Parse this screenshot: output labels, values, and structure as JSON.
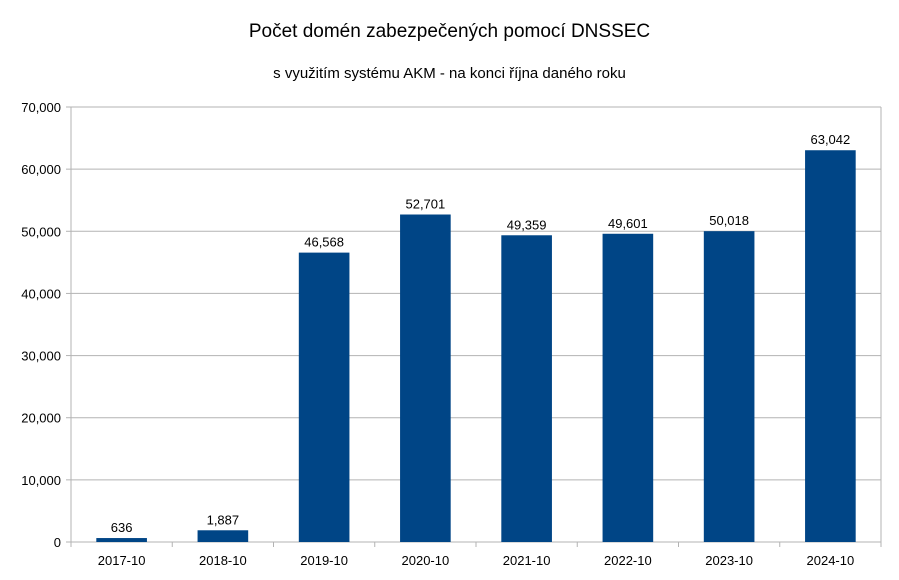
{
  "chart_data": {
    "type": "bar",
    "title": "Počet domén zabezpečených pomocí DNSSEC",
    "subtitle": "s využitím systému AKM - na konci října daného roku",
    "categories": [
      "2017-10",
      "2018-10",
      "2019-10",
      "2020-10",
      "2021-10",
      "2022-10",
      "2023-10",
      "2024-10"
    ],
    "values": [
      636,
      1887,
      46568,
      52701,
      49359,
      49601,
      50018,
      63042
    ],
    "value_labels": [
      "636",
      "1,887",
      "46,568",
      "52,701",
      "49,359",
      "49,601",
      "50,018",
      "63,042"
    ],
    "ylim": [
      0,
      70000
    ],
    "yticks": [
      0,
      10000,
      20000,
      30000,
      40000,
      50000,
      60000,
      70000
    ],
    "ytick_labels": [
      "0",
      "10,000",
      "20,000",
      "30,000",
      "40,000",
      "50,000",
      "60,000",
      "70,000"
    ],
    "bar_color": "#004586",
    "grid": true,
    "legend": "none"
  }
}
